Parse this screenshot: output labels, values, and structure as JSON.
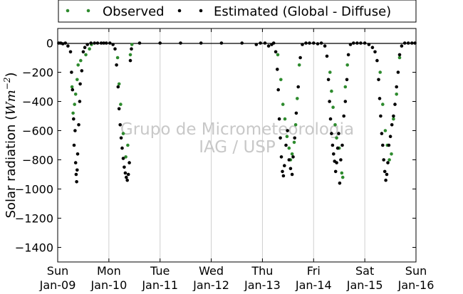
{
  "chart_data": {
    "type": "scatter",
    "xlabel": "",
    "ylabel": "Solar radiation (Wm⁻²)",
    "ylabel_parts": {
      "text": "Solar radiation (",
      "unit": "Wm",
      "exp": "−2",
      "close": ")"
    },
    "ylim": [
      -1500,
      100
    ],
    "y_ticks": [
      0,
      -200,
      -400,
      -600,
      -800,
      -1000,
      -1200,
      -1400
    ],
    "x_ticks": [
      {
        "day": "Sun",
        "date": "Jan-09"
      },
      {
        "day": "Mon",
        "date": "Jan-10"
      },
      {
        "day": "Tue",
        "date": "Jan-11"
      },
      {
        "day": "Wed",
        "date": "Jan-12"
      },
      {
        "day": "Thu",
        "date": "Jan-13"
      },
      {
        "day": "Fri",
        "date": "Jan-14"
      },
      {
        "day": "Sat",
        "date": "Jan-15"
      },
      {
        "day": "Sun",
        "date": "Jan-16"
      }
    ],
    "grid": "vertical",
    "legend_position": "top",
    "watermark": [
      "Grupo de Micrometeorologia",
      "IAG / USP"
    ],
    "colors": {
      "observed": "#2e8b2e",
      "estimated": "#000000"
    },
    "series": [
      {
        "name": "Observed",
        "points": [
          [
            0.28,
            -300
          ],
          [
            0.3,
            -480
          ],
          [
            0.33,
            -420
          ],
          [
            0.35,
            -350
          ],
          [
            0.38,
            -250
          ],
          [
            0.4,
            -150
          ],
          [
            0.45,
            -120
          ],
          [
            0.55,
            -80
          ],
          [
            0.62,
            -40
          ],
          [
            0.66,
            -10
          ],
          [
            1.17,
            -100
          ],
          [
            1.2,
            -280
          ],
          [
            1.23,
            -420
          ],
          [
            1.28,
            -620
          ],
          [
            1.33,
            -780
          ],
          [
            1.37,
            -700
          ],
          [
            1.42,
            -80
          ],
          [
            1.45,
            -10
          ],
          [
            4.3,
            -80
          ],
          [
            4.36,
            -250
          ],
          [
            4.4,
            -420
          ],
          [
            4.44,
            -520
          ],
          [
            4.48,
            -640
          ],
          [
            4.52,
            -720
          ],
          [
            4.55,
            -800
          ],
          [
            4.58,
            -760
          ],
          [
            4.62,
            -680
          ],
          [
            4.65,
            -560
          ],
          [
            4.68,
            -380
          ],
          [
            4.72,
            -150
          ],
          [
            5.32,
            -200
          ],
          [
            5.35,
            -330
          ],
          [
            5.38,
            -440
          ],
          [
            5.42,
            -560
          ],
          [
            5.45,
            -650
          ],
          [
            5.5,
            -720
          ],
          [
            5.55,
            -890
          ],
          [
            5.57,
            -920
          ],
          [
            5.62,
            -300
          ],
          [
            5.66,
            -150
          ],
          [
            6.3,
            -200
          ],
          [
            6.35,
            -420
          ],
          [
            6.4,
            -600
          ],
          [
            6.44,
            -700
          ],
          [
            6.48,
            -800
          ],
          [
            6.52,
            -760
          ],
          [
            6.56,
            -520
          ],
          [
            6.62,
            -350
          ],
          [
            6.68,
            -100
          ]
        ]
      },
      {
        "name": "Estimated (Global - Diffuse)",
        "points": [
          [
            0.02,
            0
          ],
          [
            0.06,
            0
          ],
          [
            0.1,
            -5
          ],
          [
            0.15,
            0
          ],
          [
            0.2,
            -20
          ],
          [
            0.25,
            -60
          ],
          [
            0.27,
            -200
          ],
          [
            0.29,
            -320
          ],
          [
            0.31,
            -520
          ],
          [
            0.32,
            -700
          ],
          [
            0.34,
            -600
          ],
          [
            0.35,
            -820
          ],
          [
            0.36,
            -900
          ],
          [
            0.37,
            -950
          ],
          [
            0.38,
            -870
          ],
          [
            0.39,
            -760
          ],
          [
            0.41,
            -560
          ],
          [
            0.43,
            -400
          ],
          [
            0.44,
            -280
          ],
          [
            0.47,
            -190
          ],
          [
            0.5,
            -60
          ],
          [
            0.53,
            -30
          ],
          [
            0.58,
            -10
          ],
          [
            0.65,
            0
          ],
          [
            0.72,
            0
          ],
          [
            0.78,
            0
          ],
          [
            0.85,
            0
          ],
          [
            0.9,
            0
          ],
          [
            0.95,
            0
          ],
          [
            1.02,
            0
          ],
          [
            1.08,
            -10
          ],
          [
            1.12,
            -40
          ],
          [
            1.15,
            -150
          ],
          [
            1.18,
            -300
          ],
          [
            1.2,
            -450
          ],
          [
            1.22,
            -560
          ],
          [
            1.24,
            -650
          ],
          [
            1.26,
            -720
          ],
          [
            1.28,
            -790
          ],
          [
            1.3,
            -850
          ],
          [
            1.32,
            -890
          ],
          [
            1.34,
            -920
          ],
          [
            1.36,
            -940
          ],
          [
            1.38,
            -900
          ],
          [
            1.4,
            -820
          ],
          [
            1.42,
            -120
          ],
          [
            1.44,
            -40
          ],
          [
            1.6,
            0
          ],
          [
            2.0,
            0
          ],
          [
            2.4,
            0
          ],
          [
            2.8,
            0
          ],
          [
            3.2,
            0
          ],
          [
            3.6,
            0
          ],
          [
            3.88,
            -10
          ],
          [
            3.96,
            0
          ],
          [
            4.05,
            0
          ],
          [
            4.12,
            -20
          ],
          [
            4.18,
            -10
          ],
          [
            4.22,
            0
          ],
          [
            4.26,
            -60
          ],
          [
            4.29,
            -180
          ],
          [
            4.31,
            -320
          ],
          [
            4.33,
            -520
          ],
          [
            4.35,
            -650
          ],
          [
            4.37,
            -780
          ],
          [
            4.39,
            -880
          ],
          [
            4.41,
            -910
          ],
          [
            4.43,
            -840
          ],
          [
            4.46,
            -700
          ],
          [
            4.49,
            -600
          ],
          [
            4.52,
            -800
          ],
          [
            4.55,
            -860
          ],
          [
            4.58,
            -900
          ],
          [
            4.6,
            -780
          ],
          [
            4.63,
            -650
          ],
          [
            4.66,
            -480
          ],
          [
            4.7,
            -300
          ],
          [
            4.74,
            -100
          ],
          [
            4.78,
            -10
          ],
          [
            4.85,
            0
          ],
          [
            4.92,
            0
          ],
          [
            5.0,
            0
          ],
          [
            5.08,
            -5
          ],
          [
            5.15,
            0
          ],
          [
            5.22,
            -20
          ],
          [
            5.26,
            -90
          ],
          [
            5.29,
            -250
          ],
          [
            5.31,
            -400
          ],
          [
            5.33,
            -520
          ],
          [
            5.35,
            -620
          ],
          [
            5.37,
            -700
          ],
          [
            5.39,
            -760
          ],
          [
            5.41,
            -810
          ],
          [
            5.43,
            -880
          ],
          [
            5.45,
            -820
          ],
          [
            5.47,
            -720
          ],
          [
            5.49,
            -620
          ],
          [
            5.51,
            -960
          ],
          [
            5.53,
            -800
          ],
          [
            5.56,
            -700
          ],
          [
            5.59,
            -500
          ],
          [
            5.62,
            -400
          ],
          [
            5.65,
            -250
          ],
          [
            5.68,
            -80
          ],
          [
            5.72,
            -10
          ],
          [
            5.78,
            0
          ],
          [
            5.85,
            0
          ],
          [
            5.92,
            0
          ],
          [
            6.0,
            0
          ],
          [
            6.08,
            -10
          ],
          [
            6.15,
            -30
          ],
          [
            6.2,
            -60
          ],
          [
            6.24,
            -120
          ],
          [
            6.27,
            -250
          ],
          [
            6.29,
            -380
          ],
          [
            6.31,
            -500
          ],
          [
            6.33,
            -620
          ],
          [
            6.35,
            -700
          ],
          [
            6.37,
            -800
          ],
          [
            6.39,
            -880
          ],
          [
            6.41,
            -940
          ],
          [
            6.43,
            -900
          ],
          [
            6.45,
            -820
          ],
          [
            6.47,
            -700
          ],
          [
            6.5,
            -640
          ],
          [
            6.53,
            -560
          ],
          [
            6.56,
            -500
          ],
          [
            6.59,
            -420
          ],
          [
            6.62,
            -300
          ],
          [
            6.65,
            -200
          ],
          [
            6.68,
            -80
          ],
          [
            6.72,
            -20
          ],
          [
            6.78,
            0
          ],
          [
            6.85,
            0
          ],
          [
            6.92,
            0
          ],
          [
            6.98,
            0
          ]
        ]
      }
    ]
  }
}
